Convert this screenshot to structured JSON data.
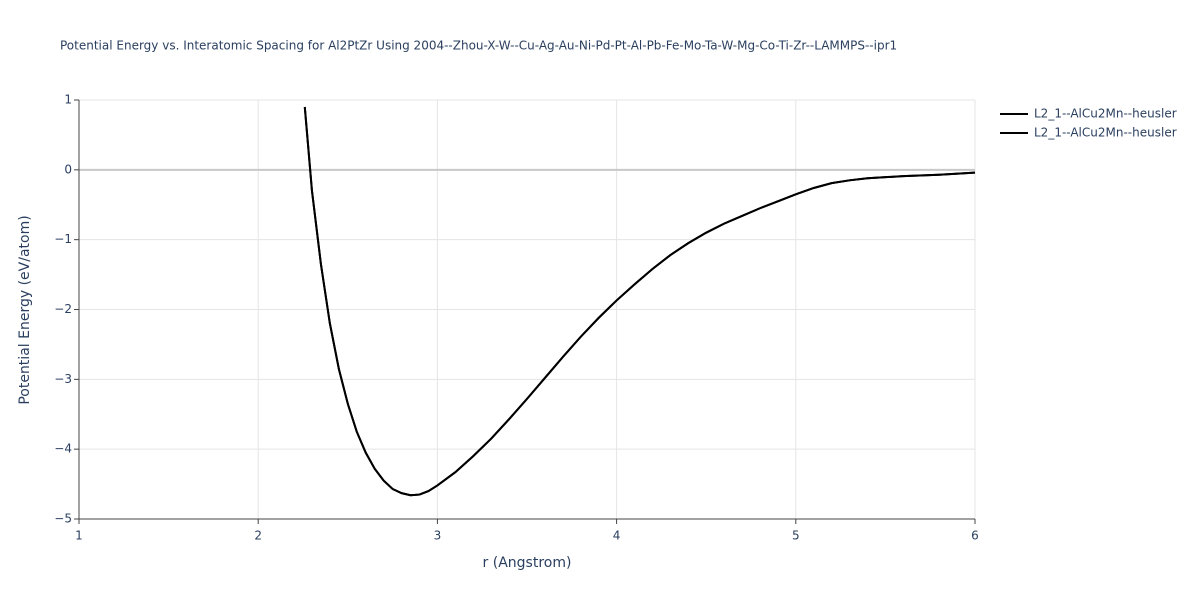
{
  "chart_data": {
    "type": "line",
    "title": "Potential Energy vs. Interatomic Spacing for Al2PtZr Using 2004--Zhou-X-W--Cu-Ag-Au-Ni-Pd-Pt-Al-Pb-Fe-Mo-Ta-W-Mg-Co-Ti-Zr--LAMMPS--ipr1",
    "x_label": "r (Angstrom)",
    "y_label": "Potential Energy (eV/atom)",
    "x": [
      2.26,
      2.3,
      2.35,
      2.4,
      2.45,
      2.5,
      2.55,
      2.6,
      2.65,
      2.7,
      2.75,
      2.8,
      2.85,
      2.9,
      2.95,
      3.0,
      3.1,
      3.2,
      3.3,
      3.4,
      3.5,
      3.6,
      3.7,
      3.8,
      3.9,
      4.0,
      4.1,
      4.2,
      4.3,
      4.4,
      4.5,
      4.6,
      4.7,
      4.8,
      4.9,
      5.0,
      5.1,
      5.2,
      5.3,
      5.4,
      5.6,
      5.8,
      6.0
    ],
    "series": [
      {
        "name": "L2_1--AlCu2Mn--heusler",
        "color": "#000000",
        "values": [
          0.9,
          -0.3,
          -1.35,
          -2.2,
          -2.85,
          -3.35,
          -3.75,
          -4.05,
          -4.28,
          -4.45,
          -4.57,
          -4.63,
          -4.66,
          -4.65,
          -4.6,
          -4.52,
          -4.33,
          -4.1,
          -3.85,
          -3.57,
          -3.28,
          -2.98,
          -2.68,
          -2.39,
          -2.12,
          -1.87,
          -1.64,
          -1.42,
          -1.22,
          -1.05,
          -0.9,
          -0.77,
          -0.66,
          -0.55,
          -0.45,
          -0.35,
          -0.26,
          -0.19,
          -0.15,
          -0.12,
          -0.09,
          -0.07,
          -0.04
        ]
      },
      {
        "name": "L2_1--AlCu2Mn--heusler",
        "color": "#000000",
        "values": [
          0.9,
          -0.3,
          -1.35,
          -2.2,
          -2.85,
          -3.35,
          -3.75,
          -4.05,
          -4.28,
          -4.45,
          -4.57,
          -4.63,
          -4.66,
          -4.65,
          -4.6,
          -4.52,
          -4.33,
          -4.1,
          -3.85,
          -3.57,
          -3.28,
          -2.98,
          -2.68,
          -2.39,
          -2.12,
          -1.87,
          -1.64,
          -1.42,
          -1.22,
          -1.05,
          -0.9,
          -0.77,
          -0.66,
          -0.55,
          -0.45,
          -0.35,
          -0.26,
          -0.19,
          -0.15,
          -0.12,
          -0.09,
          -0.07,
          -0.04
        ]
      }
    ],
    "xlim": [
      1,
      6
    ],
    "xticks": [
      1,
      2,
      3,
      4,
      5,
      6
    ],
    "ylim": [
      -5,
      1
    ],
    "yticks": [
      {
        "value": -5,
        "label": "−5"
      },
      {
        "value": -4,
        "label": "−4"
      },
      {
        "value": -3,
        "label": "−3"
      },
      {
        "value": -2,
        "label": "−2"
      },
      {
        "value": -1,
        "label": "−1"
      },
      0,
      1
    ],
    "grid": true,
    "legend": "top-right"
  }
}
